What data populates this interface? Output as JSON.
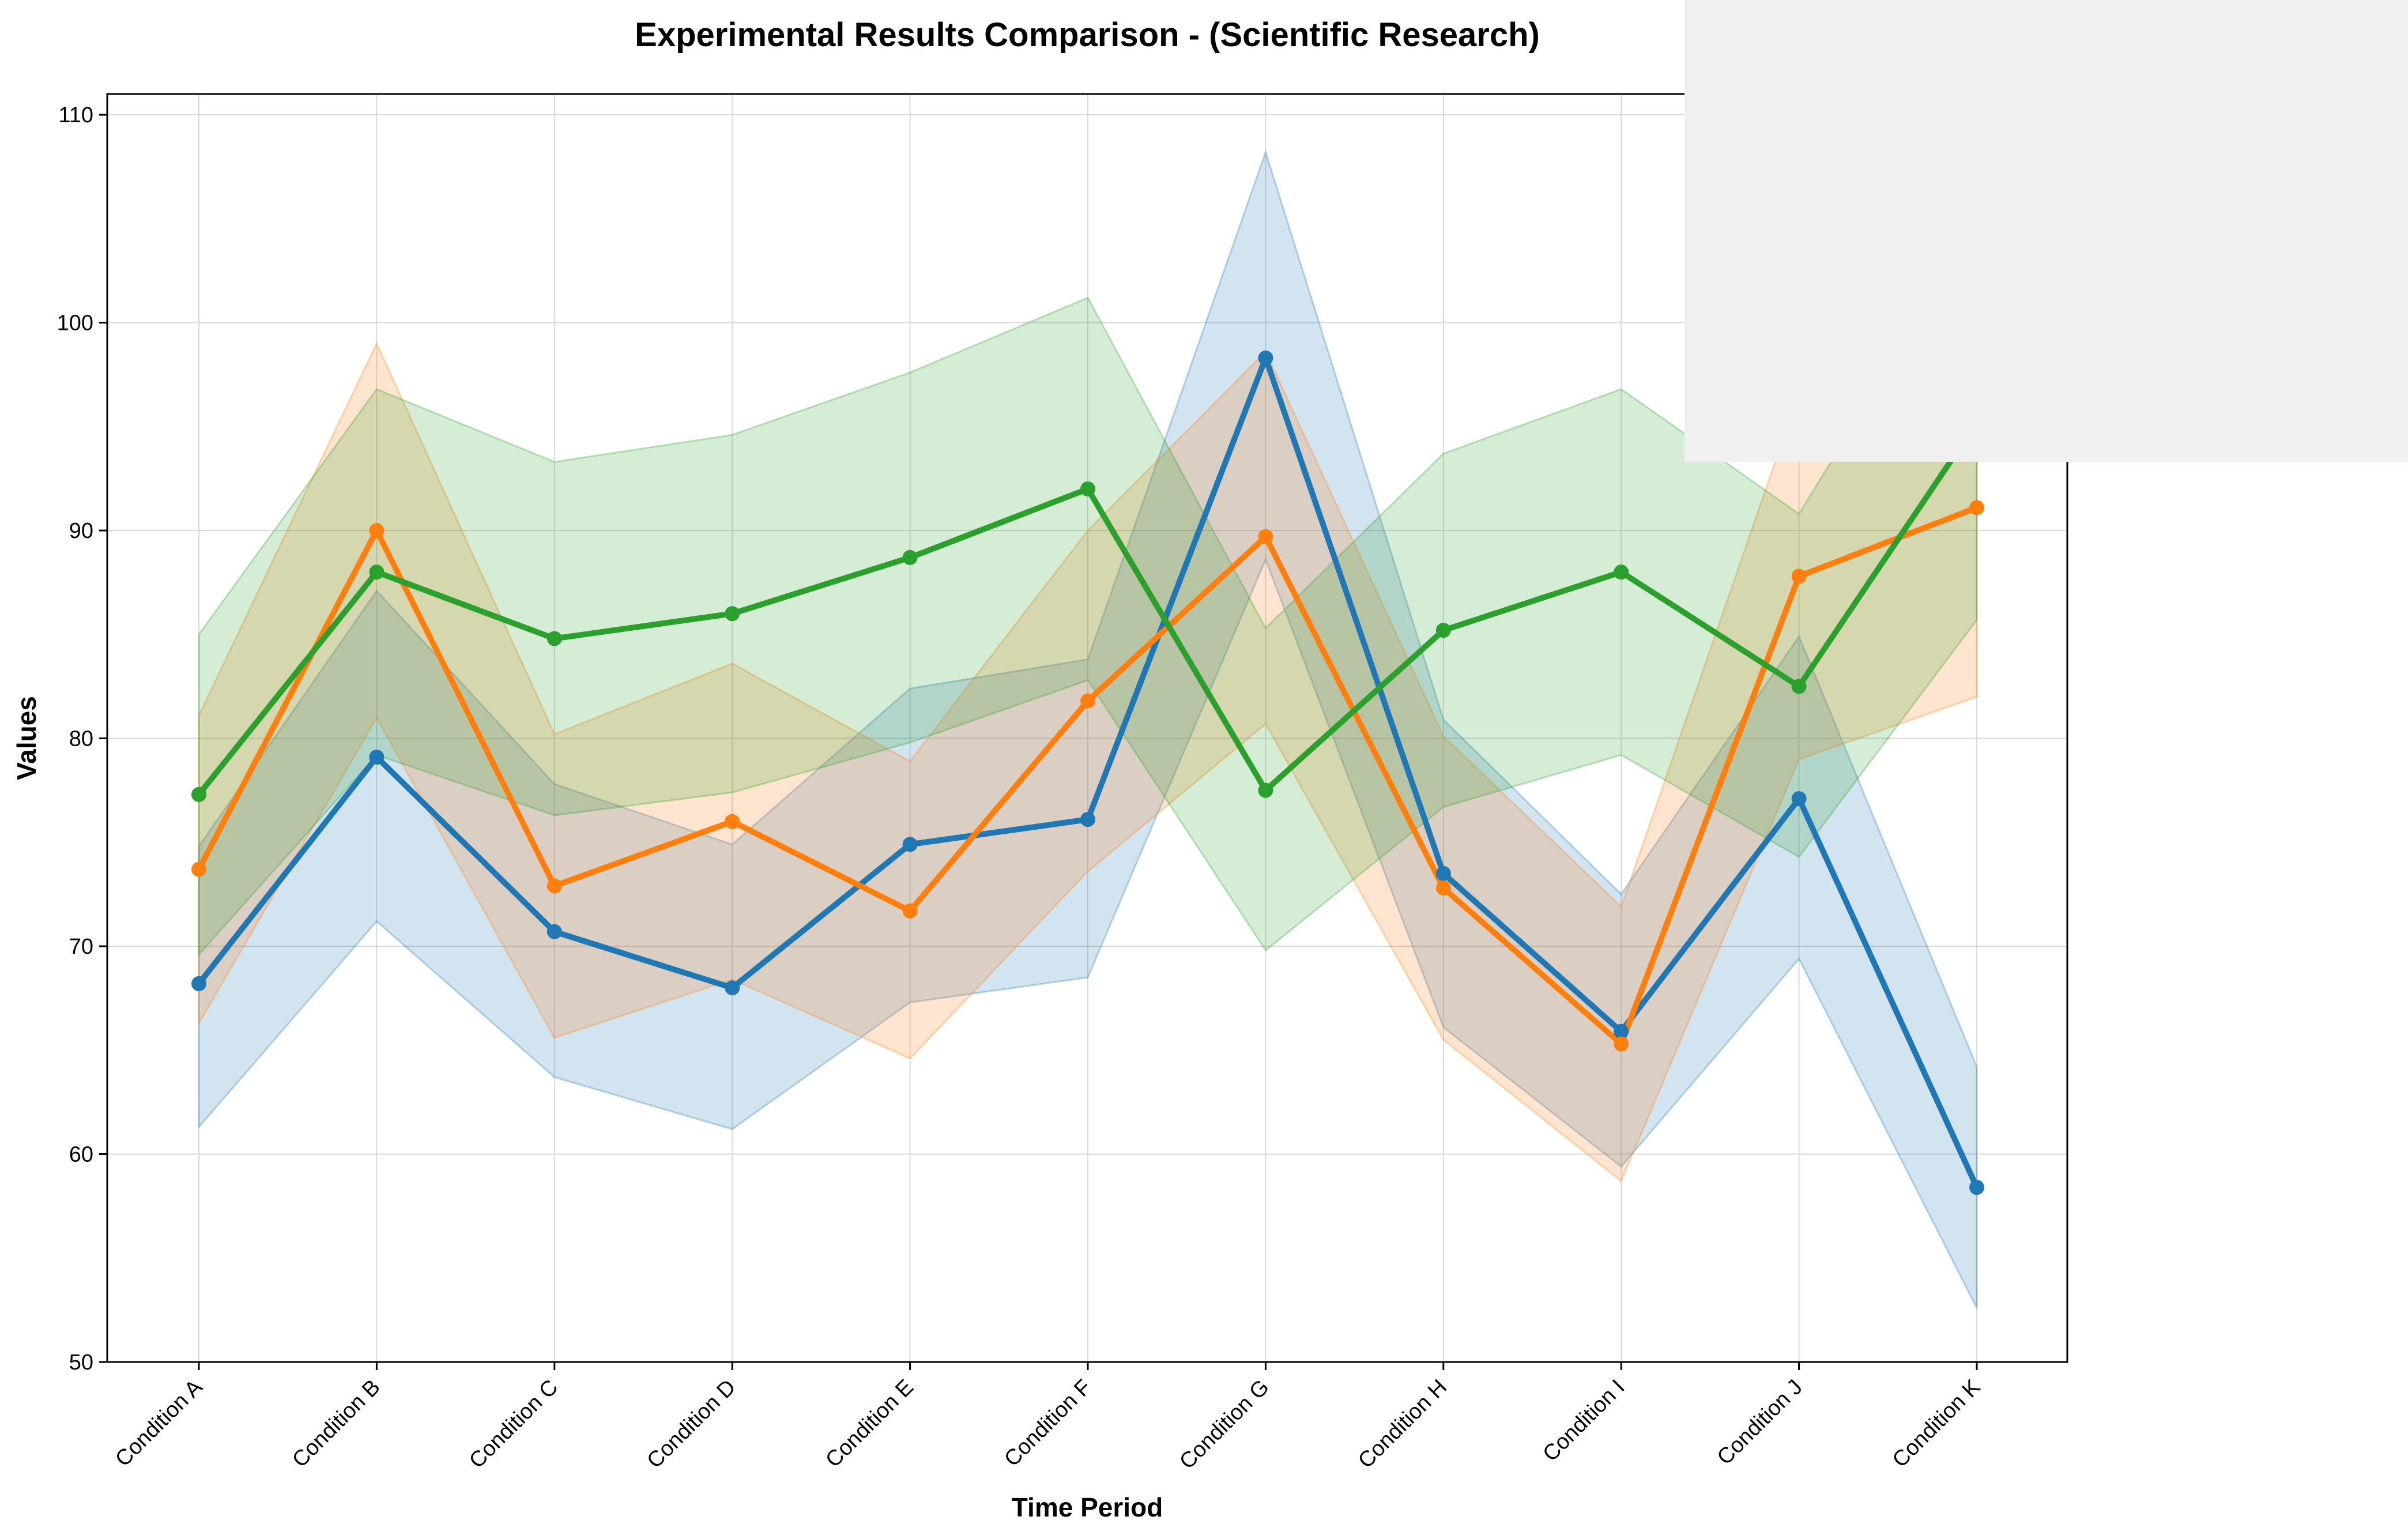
{
  "chart_data": {
    "type": "line",
    "title": "Experimental Results Comparison - (Scientific Research)",
    "xlabel": "Time Period",
    "ylabel": "Values",
    "ylim": [
      50,
      111
    ],
    "yticks": [
      50,
      60,
      70,
      80,
      90,
      100,
      110
    ],
    "grid": true,
    "legend": "top-right",
    "categories": [
      "Condition A",
      "Condition B",
      "Condition C",
      "Condition D",
      "Condition E",
      "Condition F",
      "Condition G",
      "Condition H",
      "Condition I",
      "Condition J",
      "Condition K"
    ],
    "series": [
      {
        "color": "#1f77b4",
        "values": [
          68.2,
          79.1,
          70.7,
          68.0,
          74.9,
          76.1,
          98.3,
          73.5,
          65.9,
          77.1,
          58.4
        ],
        "lower": [
          61.3,
          71.2,
          63.7,
          61.2,
          67.3,
          68.5,
          88.6,
          66.1,
          59.4,
          69.4,
          52.6
        ],
        "upper": [
          74.8,
          87.1,
          77.8,
          74.9,
          82.4,
          83.8,
          108.2,
          80.9,
          72.5,
          84.9,
          64.2
        ]
      },
      {
        "color": "#ff7f0e",
        "values": [
          73.7,
          90.0,
          72.9,
          76.0,
          71.7,
          81.8,
          89.7,
          72.8,
          65.3,
          87.8,
          91.1
        ],
        "lower": [
          66.3,
          81.0,
          65.6,
          68.4,
          64.6,
          73.6,
          80.7,
          65.5,
          58.7,
          79.0,
          82.0
        ],
        "upper": [
          81.1,
          99.0,
          80.2,
          83.6,
          78.9,
          90.0,
          98.6,
          80.1,
          71.9,
          96.6,
          100.2
        ]
      },
      {
        "color": "#2ca02c",
        "values": [
          77.3,
          88.0,
          84.8,
          86.0,
          88.7,
          92.0,
          77.5,
          85.2,
          88.0,
          82.5,
          95.2
        ],
        "lower": [
          69.6,
          79.2,
          76.3,
          77.4,
          79.8,
          82.8,
          69.8,
          76.7,
          79.2,
          74.3,
          85.7
        ],
        "upper": [
          85.0,
          96.8,
          93.3,
          94.6,
          97.6,
          101.2,
          85.3,
          93.7,
          96.8,
          90.8,
          104.7
        ]
      }
    ]
  }
}
